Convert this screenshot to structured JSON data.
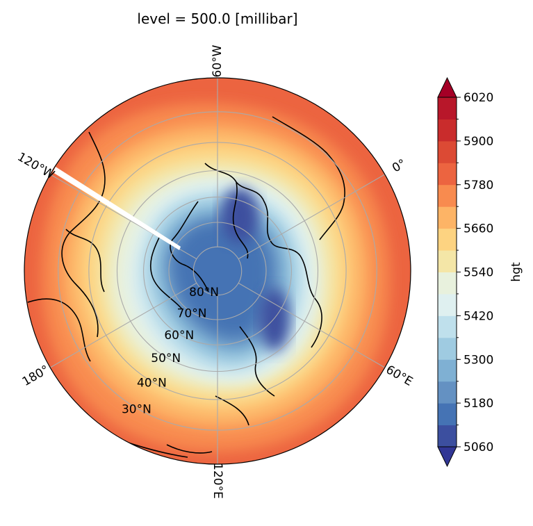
{
  "title": "level = 500.0 [millibar]",
  "map": {
    "projection": "north-polar-stereographic",
    "lon_labels": [
      {
        "text": "60°W",
        "lon": -60
      },
      {
        "text": "120°W",
        "lon": -120
      },
      {
        "text": "180°",
        "lon": 180
      },
      {
        "text": "120°E",
        "lon": 120
      },
      {
        "text": "60°E",
        "lon": 60
      },
      {
        "text": "0°",
        "lon": 0
      }
    ],
    "lat_labels": [
      {
        "text": "80°N",
        "lat": 80
      },
      {
        "text": "70°N",
        "lat": 70
      },
      {
        "text": "60°N",
        "lat": 60
      },
      {
        "text": "50°N",
        "lat": 50
      },
      {
        "text": "40°N",
        "lat": 40
      },
      {
        "text": "30°N",
        "lat": 30
      }
    ],
    "outer_lat": 20
  },
  "colorbar": {
    "label": "hgt",
    "min": 5060,
    "max": 6020,
    "step": 60,
    "extend": "both",
    "tick_labels": [
      "5060",
      "5180",
      "5300",
      "5420",
      "5540",
      "5660",
      "5780",
      "5900",
      "6020"
    ],
    "colors": [
      "#3c4f9f",
      "#4573b4",
      "#6491c2",
      "#7fb0d3",
      "#9fcbe1",
      "#bfe0ec",
      "#dff0f0",
      "#e8f1dd",
      "#f4e6a7",
      "#fdd381",
      "#fdb466",
      "#f88b4f",
      "#ec6440",
      "#dc4a34",
      "#c92c2c",
      "#b8172a"
    ],
    "under_color": "#313695",
    "over_color": "#a50026"
  }
}
